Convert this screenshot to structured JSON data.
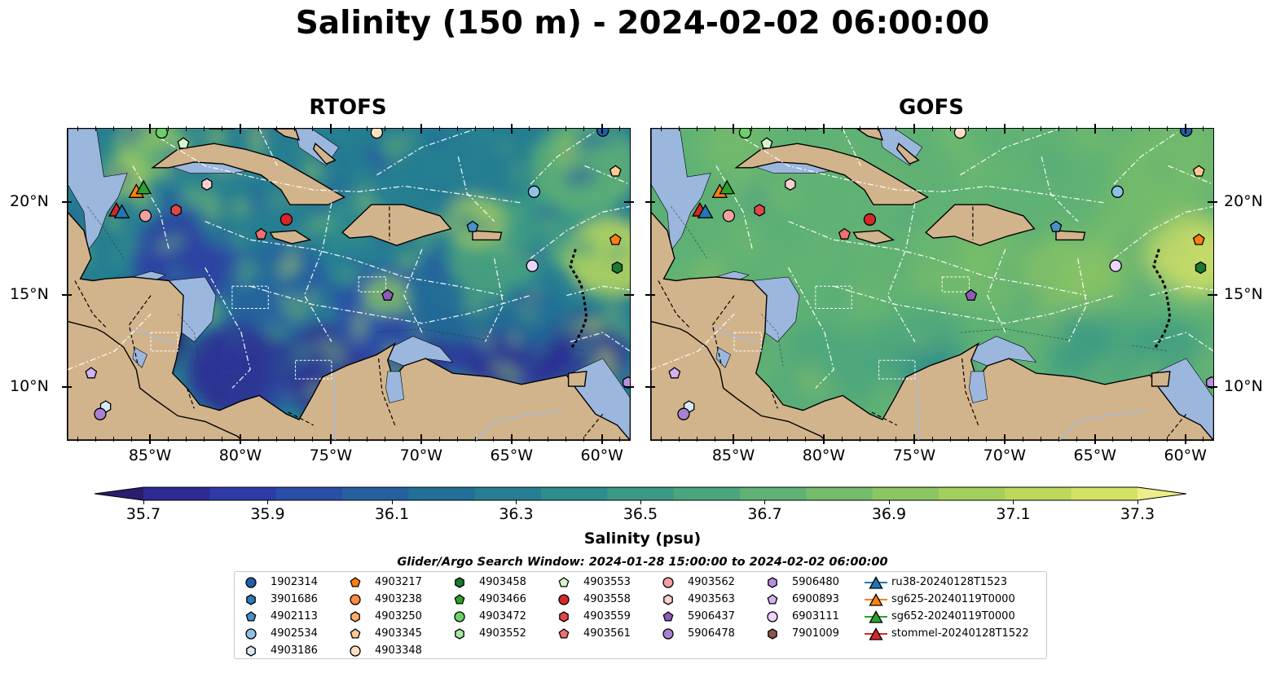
{
  "title": "Salinity (150 m) - 2024-02-02 06:00:00",
  "panels": [
    {
      "title": "RTOFS",
      "name": "rtofs"
    },
    {
      "title": "GOFS",
      "name": "gofs"
    }
  ],
  "axes": {
    "x_ticks": [
      "85°W",
      "80°W",
      "75°W",
      "70°W",
      "65°W",
      "60°W"
    ],
    "x_tick_values": [
      -85,
      -80,
      -75,
      -70,
      -65,
      -60
    ],
    "y_ticks": [
      "20°N",
      "15°N",
      "10°N"
    ],
    "y_tick_values": [
      20,
      15,
      10
    ],
    "lon_range": [
      -89.6,
      -58.5
    ],
    "lat_range": [
      7.2,
      24.0
    ]
  },
  "colorbar": {
    "title": "Salinity (psu)",
    "tick_labels": [
      "35.7",
      "35.9",
      "36.1",
      "36.3",
      "36.5",
      "36.7",
      "36.9",
      "37.1",
      "37.3"
    ],
    "colors": [
      "#2c1c6e",
      "#2d2a94",
      "#2e3ba6",
      "#2a4ea8",
      "#25609f",
      "#226f97",
      "#257e91",
      "#2d8c8c",
      "#3a9a85",
      "#4ba67d",
      "#5fb174",
      "#74bb6b",
      "#8cc663",
      "#a4cf5d",
      "#bcd95c",
      "#d5e266",
      "#eded8a"
    ],
    "extend": "both"
  },
  "legend": {
    "title": "Glider/Argo Search Window: 2024-01-28 15:00:00 to 2024-02-02 06:00:00",
    "columns": [
      [
        {
          "label": "1902314",
          "marker": "circle",
          "color": "#1f5fa8"
        },
        {
          "label": "3901686",
          "marker": "hexagon",
          "color": "#2c7bb6"
        },
        {
          "label": "4902113",
          "marker": "pentagon",
          "color": "#4a90c9"
        },
        {
          "label": "4902534",
          "marker": "circle",
          "color": "#8ec1e6"
        },
        {
          "label": "4903186",
          "marker": "hexagon",
          "color": "#d6e9f7"
        }
      ],
      [
        {
          "label": "4903217",
          "marker": "pentagon",
          "color": "#ff7f0e"
        },
        {
          "label": "4903238",
          "marker": "circle",
          "color": "#fd8d3c"
        },
        {
          "label": "4903250",
          "marker": "hexagon",
          "color": "#fdae6b"
        },
        {
          "label": "4903345",
          "marker": "pentagon",
          "color": "#fdc995"
        },
        {
          "label": "4903348",
          "marker": "circle",
          "color": "#fde0c5"
        }
      ],
      [
        {
          "label": "4903458",
          "marker": "hexagon",
          "color": "#1a7a2e"
        },
        {
          "label": "4903466",
          "marker": "pentagon",
          "color": "#2ca02c"
        },
        {
          "label": "4903472",
          "marker": "circle",
          "color": "#6ccf6c"
        },
        {
          "label": "4903552",
          "marker": "hexagon",
          "color": "#a7e8a0"
        }
      ],
      [
        {
          "label": "4903553",
          "marker": "pentagon",
          "color": "#d6f5cf"
        },
        {
          "label": "4903558",
          "marker": "circle",
          "color": "#d62728"
        },
        {
          "label": "4903559",
          "marker": "hexagon",
          "color": "#e04848"
        },
        {
          "label": "4903561",
          "marker": "pentagon",
          "color": "#f07070"
        }
      ],
      [
        {
          "label": "4903562",
          "marker": "circle",
          "color": "#f4a0a0"
        },
        {
          "label": "4903563",
          "marker": "hexagon",
          "color": "#fbd0d0"
        },
        {
          "label": "5906437",
          "marker": "pentagon",
          "color": "#8e5cb8"
        },
        {
          "label": "5906478",
          "marker": "circle",
          "color": "#a882d0"
        }
      ],
      [
        {
          "label": "5906480",
          "marker": "hexagon",
          "color": "#b98ee0"
        },
        {
          "label": "6900893",
          "marker": "pentagon",
          "color": "#d2b2ef"
        },
        {
          "label": "6903111",
          "marker": "circle",
          "color": "#ebd3fb"
        },
        {
          "label": "7901009",
          "marker": "hexagon",
          "color": "#8c564b"
        }
      ],
      [
        {
          "label": "ru38-20240128T1523",
          "marker": "triangle-line",
          "color": "#1f77b4"
        },
        {
          "label": "sg625-20240119T0000",
          "marker": "triangle-line",
          "color": "#ff7f0e"
        },
        {
          "label": "sg652-20240119T0000",
          "marker": "triangle-line",
          "color": "#2ca02c"
        },
        {
          "label": "stommel-20240128T1522",
          "marker": "triangle-line",
          "color": "#d62728"
        }
      ]
    ]
  },
  "markers_on_map": [
    {
      "label": "1902314",
      "lon": -60.0,
      "lat": 23.9
    },
    {
      "label": "4902534",
      "lon": -63.8,
      "lat": 20.6
    },
    {
      "label": "4903558",
      "lon": -77.5,
      "lat": 19.1
    },
    {
      "label": "4903559",
      "lon": -83.6,
      "lat": 19.6
    },
    {
      "label": "4903562",
      "lon": -85.3,
      "lat": 19.3
    },
    {
      "label": "4903561",
      "lon": -78.9,
      "lat": 18.3
    },
    {
      "label": "4903563",
      "lon": -81.9,
      "lat": 21.0
    },
    {
      "label": "4903553",
      "lon": -83.2,
      "lat": 23.2
    },
    {
      "label": "4903472",
      "lon": -84.4,
      "lat": 23.8
    },
    {
      "label": "4903348",
      "lon": -72.5,
      "lat": 23.8
    },
    {
      "label": "4903345",
      "lon": -59.3,
      "lat": 21.7
    },
    {
      "label": "4903217",
      "lon": -59.3,
      "lat": 18.0
    },
    {
      "label": "4903458",
      "lon": -59.2,
      "lat": 16.5
    },
    {
      "label": "4902113",
      "lon": -67.2,
      "lat": 18.7
    },
    {
      "label": "6903111",
      "lon": -63.9,
      "lat": 16.6
    },
    {
      "label": "5906437",
      "lon": -71.9,
      "lat": 15.0
    },
    {
      "label": "6900893",
      "lon": -88.3,
      "lat": 10.8
    },
    {
      "label": "4903186",
      "lon": -87.5,
      "lat": 9.0
    },
    {
      "label": "5906478",
      "lon": -87.8,
      "lat": 8.6
    },
    {
      "label": "5906480",
      "lon": -58.6,
      "lat": 10.3
    },
    {
      "label": "sg625-20240119T0000",
      "lon": -85.8,
      "lat": 20.6
    },
    {
      "label": "sg652-20240119T0000",
      "lon": -85.4,
      "lat": 20.8
    },
    {
      "label": "stommel-20240128T1522",
      "lon": -86.9,
      "lat": 19.6
    },
    {
      "label": "ru38-20240128T1523",
      "lon": -86.6,
      "lat": 19.5
    }
  ]
}
